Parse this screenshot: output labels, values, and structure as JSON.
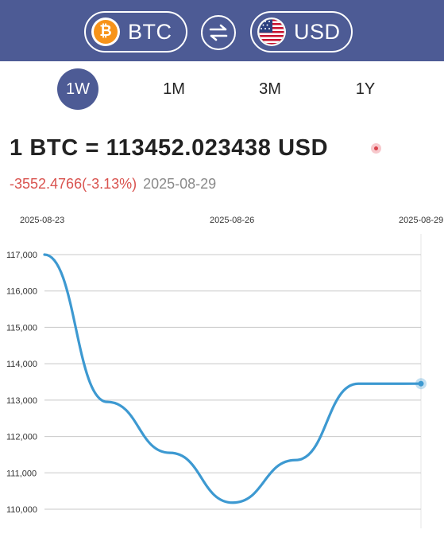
{
  "header": {
    "from_currency": {
      "code": "BTC",
      "icon": "bitcoin-icon",
      "symbol": "₿",
      "color": "#f7931a"
    },
    "swap_icon": "swap-arrows-icon",
    "to_currency": {
      "code": "USD",
      "icon": "us-flag-icon"
    },
    "background": "#4d5b95"
  },
  "tabs": [
    {
      "label": "1W",
      "active": true
    },
    {
      "label": "1M",
      "active": false
    },
    {
      "label": "3M",
      "active": false
    },
    {
      "label": "1Y",
      "active": false
    }
  ],
  "rate": {
    "text": "1 BTC = 113452.023438 USD",
    "change": "-3552.4766(-3.13%)",
    "date": "2025-08-29",
    "change_color": "#d9534f"
  },
  "chart_data": {
    "type": "line",
    "x_tick_labels": [
      "2025-08-23",
      "2025-08-26",
      "2025-08-29"
    ],
    "y_tick_labels": [
      "117,000",
      "116,000",
      "115,000",
      "114,000",
      "113,000",
      "112,000",
      "111,000",
      "110,000"
    ],
    "ylim": [
      110000,
      117000
    ],
    "grid": true,
    "line_color": "#3d99d1",
    "series": [
      {
        "x": [
          "2025-08-23",
          "2025-08-24",
          "2025-08-25",
          "2025-08-26",
          "2025-08-27",
          "2025-08-28",
          "2025-08-29"
        ],
        "values": [
          117000,
          112950,
          111550,
          110180,
          111350,
          113450,
          113452
        ]
      }
    ]
  }
}
